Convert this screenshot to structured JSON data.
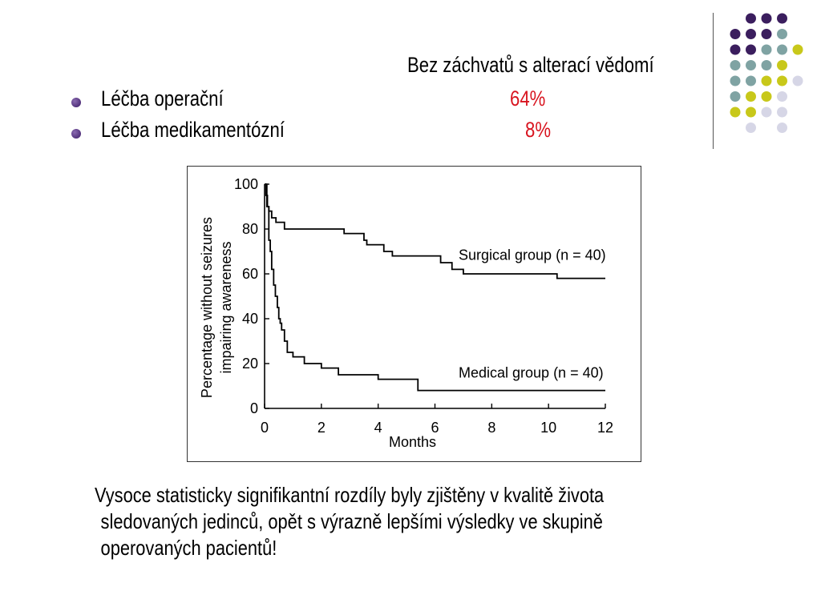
{
  "slide": {
    "header": "Bez záchvatů s alterací vědomí",
    "rows": [
      {
        "label": "Léčba operační",
        "value": "64%"
      },
      {
        "label": "Léčba medikamentózní",
        "value": "8%"
      }
    ],
    "footer_lines": [
      "Vysoce statisticky signifikantní rozdíly byly zjištěny v kvalitě života",
      "sledovaných jedinců, opět s výrazně lepšími výsledky ve skupině",
      "operovaných pacientů!"
    ]
  },
  "colors": {
    "value_red": "#d8141f",
    "bullet_purple": "#3a1a66",
    "dot_purple": "#3b1e5e",
    "dot_teal": "#7fa3a3",
    "dot_yellow": "#c8c81a",
    "dot_lavender": "#d6d6e6"
  },
  "chart_data": {
    "type": "line",
    "step": true,
    "title": "",
    "xlabel": "Months",
    "ylabel_lines": [
      "Percentage without seizures",
      "impairing awareness"
    ],
    "xlim": [
      0,
      12
    ],
    "ylim": [
      0,
      100
    ],
    "xticks": [
      0,
      2,
      4,
      6,
      8,
      10,
      12
    ],
    "yticks": [
      0,
      20,
      40,
      60,
      80,
      100
    ],
    "grid": false,
    "series": [
      {
        "name": "Surgical group (n = 40)",
        "x": [
          0,
          0.05,
          0.1,
          0.15,
          0.25,
          0.4,
          0.7,
          2.5,
          2.8,
          3.5,
          3.6,
          4.2,
          4.5,
          6.0,
          6.2,
          6.6,
          7.0,
          8.6,
          10.3,
          12
        ],
        "y": [
          100,
          95,
          90,
          88,
          85,
          83,
          80,
          80,
          78,
          75,
          73,
          70,
          68,
          68,
          65,
          62,
          60,
          60,
          58,
          58
        ]
      },
      {
        "name": "Medical group (n = 40)",
        "x": [
          0,
          0.08,
          0.15,
          0.2,
          0.25,
          0.32,
          0.38,
          0.45,
          0.5,
          0.55,
          0.6,
          0.7,
          0.8,
          1.0,
          1.4,
          2.0,
          2.6,
          4.0,
          5.4,
          12
        ],
        "y": [
          100,
          90,
          75,
          70,
          62,
          55,
          50,
          45,
          40,
          38,
          35,
          30,
          25,
          23,
          20,
          18,
          15,
          13,
          8,
          8
        ]
      }
    ]
  }
}
